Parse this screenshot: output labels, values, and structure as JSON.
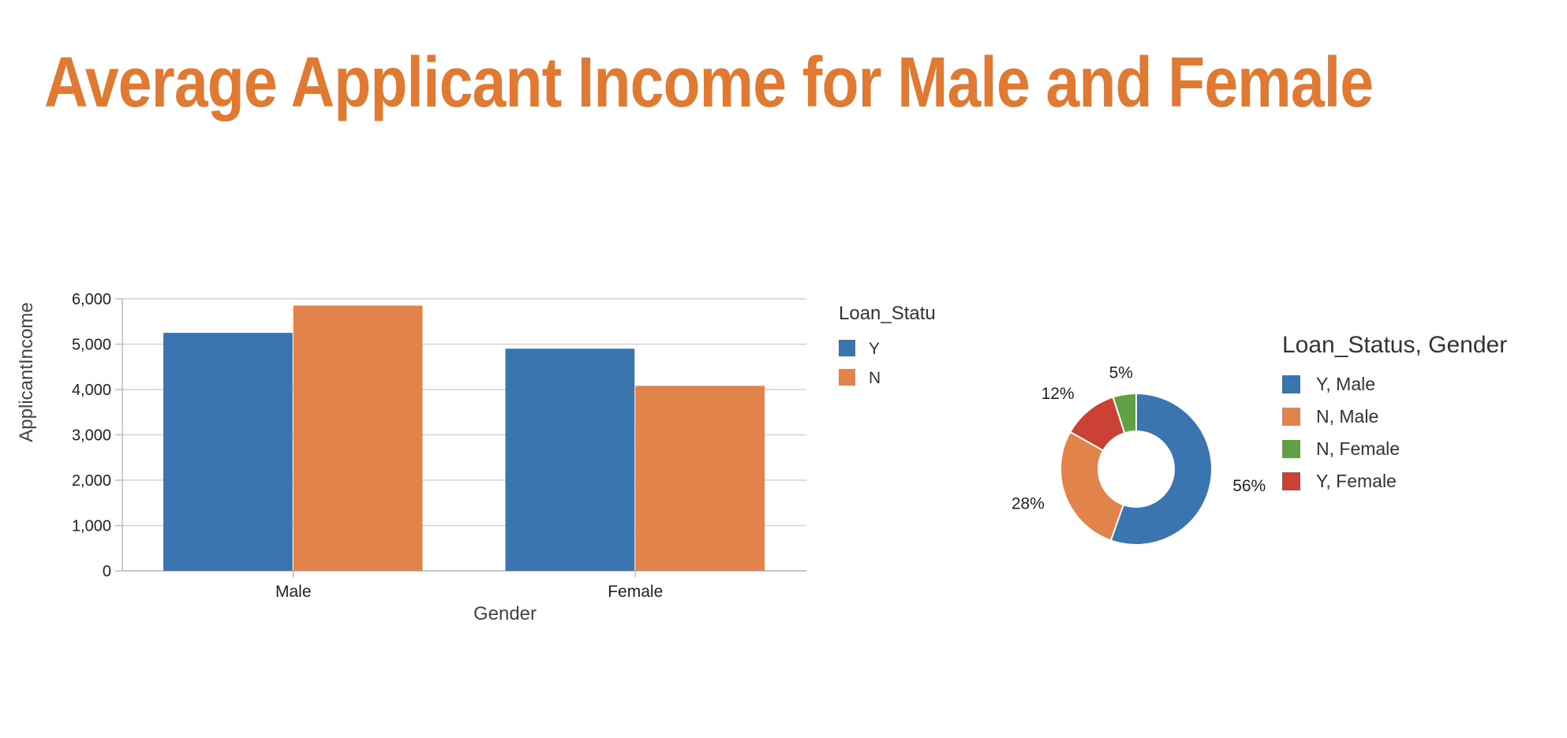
{
  "page": {
    "title": "Average Applicant Income for Male and Female",
    "title_color": "#e07a32"
  },
  "chart_data": [
    {
      "type": "bar",
      "categories": [
        "Male",
        "Female"
      ],
      "series": [
        {
          "name": "Y",
          "color": "#3b75af",
          "values": [
            5250,
            4900
          ]
        },
        {
          "name": "N",
          "color": "#e1834a",
          "values": [
            5850,
            4080
          ]
        }
      ],
      "xlabel": "Gender",
      "ylabel": "ApplicantIncome",
      "ylim": [
        0,
        6000
      ],
      "yticks": [
        0,
        1000,
        2000,
        3000,
        4000,
        5000,
        6000
      ],
      "ytick_labels": [
        "0",
        "1,000",
        "2,000",
        "3,000",
        "4,000",
        "5,000",
        "6,000"
      ],
      "legend_title": "Loan_Statu",
      "legend_placement": "right",
      "grid": true
    },
    {
      "type": "pie",
      "style": "donut",
      "legend_title": "Loan_Status, Gender",
      "legend_placement": "right",
      "slices": [
        {
          "label": "Y, Male",
          "value": 56,
          "value_label": "56%",
          "color": "#3b75af"
        },
        {
          "label": "N, Male",
          "value": 28,
          "value_label": "28%",
          "color": "#e1834a"
        },
        {
          "label": "Y, Female",
          "value": 12,
          "value_label": "12%",
          "color": "#cc4136"
        },
        {
          "label": "N, Female",
          "value": 5,
          "value_label": "5%",
          "color": "#62a046"
        }
      ],
      "legend_order": [
        "Y, Male",
        "N, Male",
        "N, Female",
        "Y, Female"
      ]
    }
  ]
}
